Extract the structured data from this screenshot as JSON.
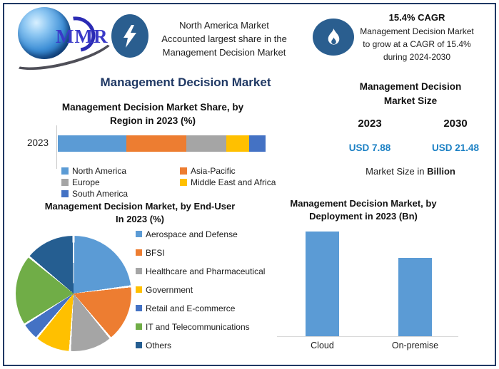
{
  "brand": {
    "logo_text": "MMR",
    "logo_icon": "globe-icon"
  },
  "header": {
    "left_callout": {
      "icon": "lightning-icon",
      "lines": [
        "North America Market",
        "Accounted largest share in the",
        "Management Decision Market"
      ]
    },
    "right_callout": {
      "icon": "flame-icon",
      "heading": "15.4% CAGR",
      "lines": [
        "Management Decision Market",
        "to grow at a CAGR of 15.4%",
        "during 2024-2030"
      ]
    }
  },
  "main_title": "Management Decision Market",
  "market_size": {
    "title_lines": [
      "Management Decision",
      "Market Size"
    ],
    "columns": [
      {
        "year": "2023",
        "value": "USD 7.88"
      },
      {
        "year": "2030",
        "value": "USD 21.48"
      }
    ],
    "footnote": {
      "regular": "Market Size in ",
      "bold": "Billion"
    },
    "value_color": "#1B80C4"
  },
  "colors": {
    "border_navy": "#1F3864",
    "badge_blue": "#2A5E8F",
    "title_navy": "#1F3864"
  },
  "chart_data": [
    {
      "id": "region_share",
      "type": "bar",
      "subtype": "stacked-horizontal",
      "title": "Management Decision Market Share, by Region in 2023 (%)",
      "title_lines": [
        "Management Decision Market Share, by",
        "Region in 2023 (%)"
      ],
      "categories": [
        "2023"
      ],
      "series": [
        {
          "name": "North America",
          "values": [
            33
          ],
          "color": "#5B9BD5"
        },
        {
          "name": "Asia-Pacific",
          "values": [
            29
          ],
          "color": "#ED7D31"
        },
        {
          "name": "Europe",
          "values": [
            19
          ],
          "color": "#A5A5A5"
        },
        {
          "name": "Middle East and Africa",
          "values": [
            11
          ],
          "color": "#FFC000"
        },
        {
          "name": "South America",
          "values": [
            8
          ],
          "color": "#4472C4"
        }
      ],
      "xlim": [
        0,
        100
      ],
      "grid": false,
      "legend_position": "bottom"
    },
    {
      "id": "end_user",
      "type": "pie",
      "title": "Management Decision Market, by End-User In 2023 (%)",
      "title_lines": [
        "Management Decision Market, by End-User",
        "In 2023 (%)"
      ],
      "start_angle_deg": 0,
      "slices": [
        {
          "label": "Aerospace and Defense",
          "value": 23,
          "color": "#5B9BD5"
        },
        {
          "label": "BFSI",
          "value": 16,
          "color": "#ED7D31"
        },
        {
          "label": "Healthcare and Pharmaceutical",
          "value": 12,
          "color": "#A5A5A5"
        },
        {
          "label": "Government",
          "value": 10,
          "color": "#FFC000"
        },
        {
          "label": "Retail and E-commerce",
          "value": 5,
          "color": "#4472C4"
        },
        {
          "label": "IT and Telecommunications",
          "value": 20,
          "color": "#70AD47"
        },
        {
          "label": "Others",
          "value": 14,
          "color": "#255E91"
        }
      ],
      "legend_position": "right"
    },
    {
      "id": "deployment",
      "type": "bar",
      "title": "Management Decision Market, by Deployment in 2023 (Bn)",
      "title_lines": [
        "Management Decision Market, by",
        "Deployment in 2023 (Bn)"
      ],
      "categories": [
        "Cloud",
        "On-premise"
      ],
      "values": [
        4.5,
        3.38
      ],
      "bar_color": "#5B9BD5",
      "ylim": [
        0,
        5
      ],
      "grid": false,
      "legend_position": "none"
    }
  ]
}
